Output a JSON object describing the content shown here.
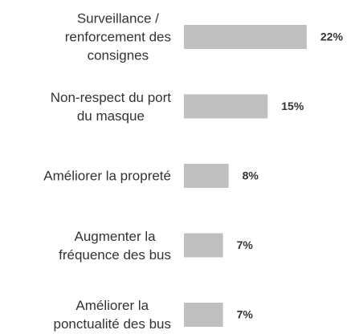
{
  "chart_data": {
    "type": "bar",
    "orientation": "horizontal",
    "categories": [
      "Surveillance /\nrenforcement des\nconsignes",
      "Non-respect du port\ndu masque",
      "Améliorer la propreté",
      "Augmenter la\nfréquence des bus",
      "Améliorer la\nponctualité des bus"
    ],
    "values": [
      22,
      15,
      8,
      7,
      7
    ],
    "value_labels": [
      "22%",
      "15%",
      "8%",
      "7%",
      "7%"
    ],
    "color": "#bfbfbf"
  }
}
